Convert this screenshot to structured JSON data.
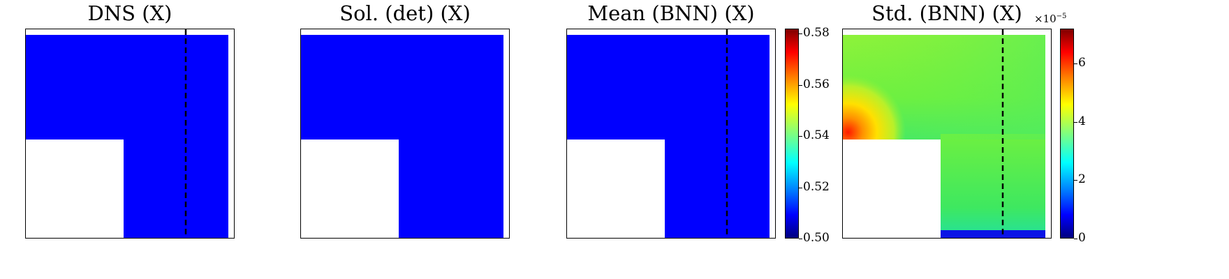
{
  "panels": [
    {
      "title": "DNS (X)"
    },
    {
      "title": "Sol. (det) (X)"
    },
    {
      "title": "Mean (BNN) (X)"
    },
    {
      "title": "Std. (BNN) (X)"
    }
  ],
  "colorbars": [
    {
      "ticks": [
        "0.58",
        "0.56",
        "0.54",
        "0.52",
        "0.50"
      ],
      "range": [
        0.5,
        0.582
      ]
    },
    {
      "multiplier": "×10",
      "exponent": "−5",
      "ticks": [
        "6",
        "4",
        "2",
        "0"
      ],
      "range": [
        0,
        7.2
      ]
    }
  ],
  "chart_data": [
    {
      "type": "heatmap",
      "title": "DNS (X)",
      "value": 0.5,
      "colormap": "jet",
      "dashed_line": true,
      "x": [],
      "y": []
    },
    {
      "type": "heatmap",
      "title": "Sol. (det) (X)",
      "value": 0.5,
      "colormap": "jet",
      "dashed_line": false
    },
    {
      "type": "heatmap",
      "title": "Mean (BNN) (X)",
      "value": 0.5,
      "colormap": "jet",
      "dashed_line": true,
      "colorbar_range": [
        0.5,
        0.582
      ]
    },
    {
      "type": "heatmap",
      "title": "Std. (BNN) (X)",
      "colormap": "jet",
      "dashed_line": true,
      "colorbar_range": [
        0,
        7.2
      ],
      "colorbar_scale": "1e-5",
      "description_values": {
        "max_near_corner": 7.0,
        "typical": 4.2,
        "bottom_edge": 0.3
      }
    }
  ]
}
